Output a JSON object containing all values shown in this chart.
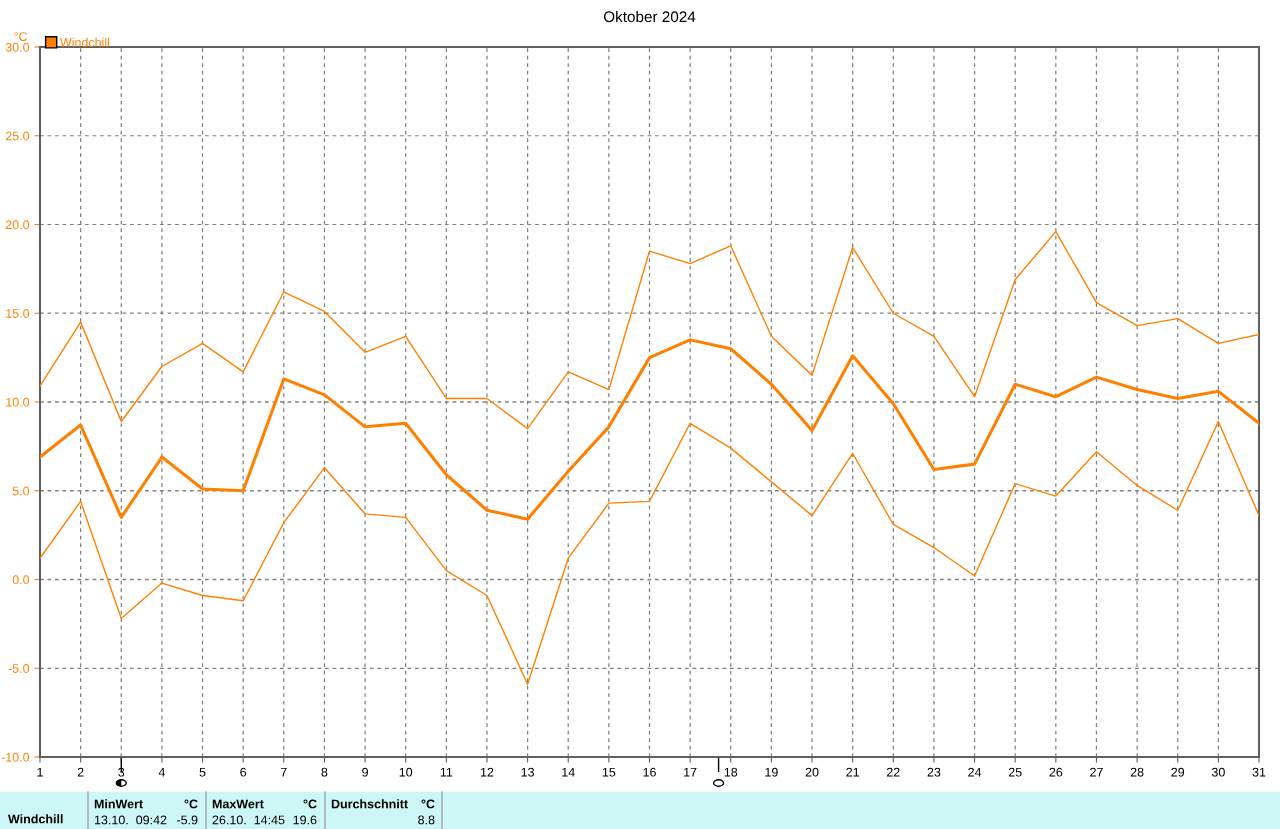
{
  "chart_data": {
    "type": "line",
    "title": "Oktober 2024",
    "ylabel": "°C",
    "x": [
      1,
      2,
      3,
      4,
      5,
      6,
      7,
      8,
      9,
      10,
      11,
      12,
      13,
      14,
      15,
      16,
      17,
      18,
      19,
      20,
      21,
      22,
      23,
      24,
      25,
      26,
      27,
      28,
      29,
      30,
      31
    ],
    "series": [
      {
        "color": "#ff8000",
        "values": [
          10.9,
          14.5,
          8.9,
          12.0,
          13.3,
          11.7,
          16.2,
          15.1,
          12.8,
          13.7,
          10.2,
          10.2,
          8.5,
          11.7,
          10.7,
          18.5,
          17.8,
          18.8,
          13.7,
          11.5,
          18.7,
          15.0,
          13.7,
          10.3,
          16.9,
          19.6,
          15.6,
          14.3,
          14.7,
          13.3,
          13.8
        ]
      },
      {
        "name": "Windchill",
        "color": "#ff8000",
        "values": [
          6.9,
          8.7,
          3.5,
          6.9,
          5.1,
          5.0,
          11.3,
          10.4,
          8.6,
          8.8,
          5.9,
          3.9,
          3.4,
          6.1,
          8.6,
          12.5,
          13.5,
          13.0,
          11.0,
          8.4,
          12.6,
          9.9,
          6.2,
          6.5,
          11.0,
          10.3,
          11.4,
          10.7,
          10.2,
          10.6,
          8.8
        ]
      },
      {
        "color": "#ff8000",
        "values": [
          1.2,
          4.4,
          -2.2,
          -0.2,
          -0.9,
          -1.2,
          3.2,
          6.3,
          3.7,
          3.5,
          0.5,
          -0.9,
          -5.9,
          1.2,
          4.3,
          4.4,
          8.8,
          7.4,
          5.5,
          3.6,
          7.1,
          3.1,
          1.8,
          0.2,
          5.4,
          4.7,
          7.2,
          5.3,
          3.9,
          8.9,
          3.6
        ]
      }
    ],
    "xlim": [
      1,
      31
    ],
    "xticks": [
      1,
      2,
      3,
      4,
      5,
      6,
      7,
      8,
      9,
      10,
      11,
      12,
      13,
      14,
      15,
      16,
      17,
      18,
      19,
      20,
      21,
      22,
      23,
      24,
      25,
      26,
      27,
      28,
      29,
      30,
      31
    ],
    "ylim": [
      -10,
      30
    ],
    "yticks": [
      {
        "value": -10,
        "label": "-10.0"
      },
      {
        "value": -5,
        "label": "-5.0"
      },
      {
        "value": 0,
        "label": "0.0"
      },
      {
        "value": 5,
        "label": "5.0"
      },
      {
        "value": 10,
        "label": "10.0"
      },
      {
        "value": 15,
        "label": "15.0"
      },
      {
        "value": 20,
        "label": "20.0"
      },
      {
        "value": 25,
        "label": "25.0"
      },
      {
        "value": 30,
        "label": "30.0"
      }
    ],
    "grid": true,
    "legend": "top left",
    "marker": "none",
    "line_style": "solid",
    "annotations": [
      "Windchill",
      "MinWert",
      "°C",
      "13.10.  09:42",
      "-5.9",
      "MaxWert",
      "°C",
      "26.10.  14:45",
      "19.6",
      "Durchschnitt",
      "°C",
      "8.8"
    ]
  }
}
